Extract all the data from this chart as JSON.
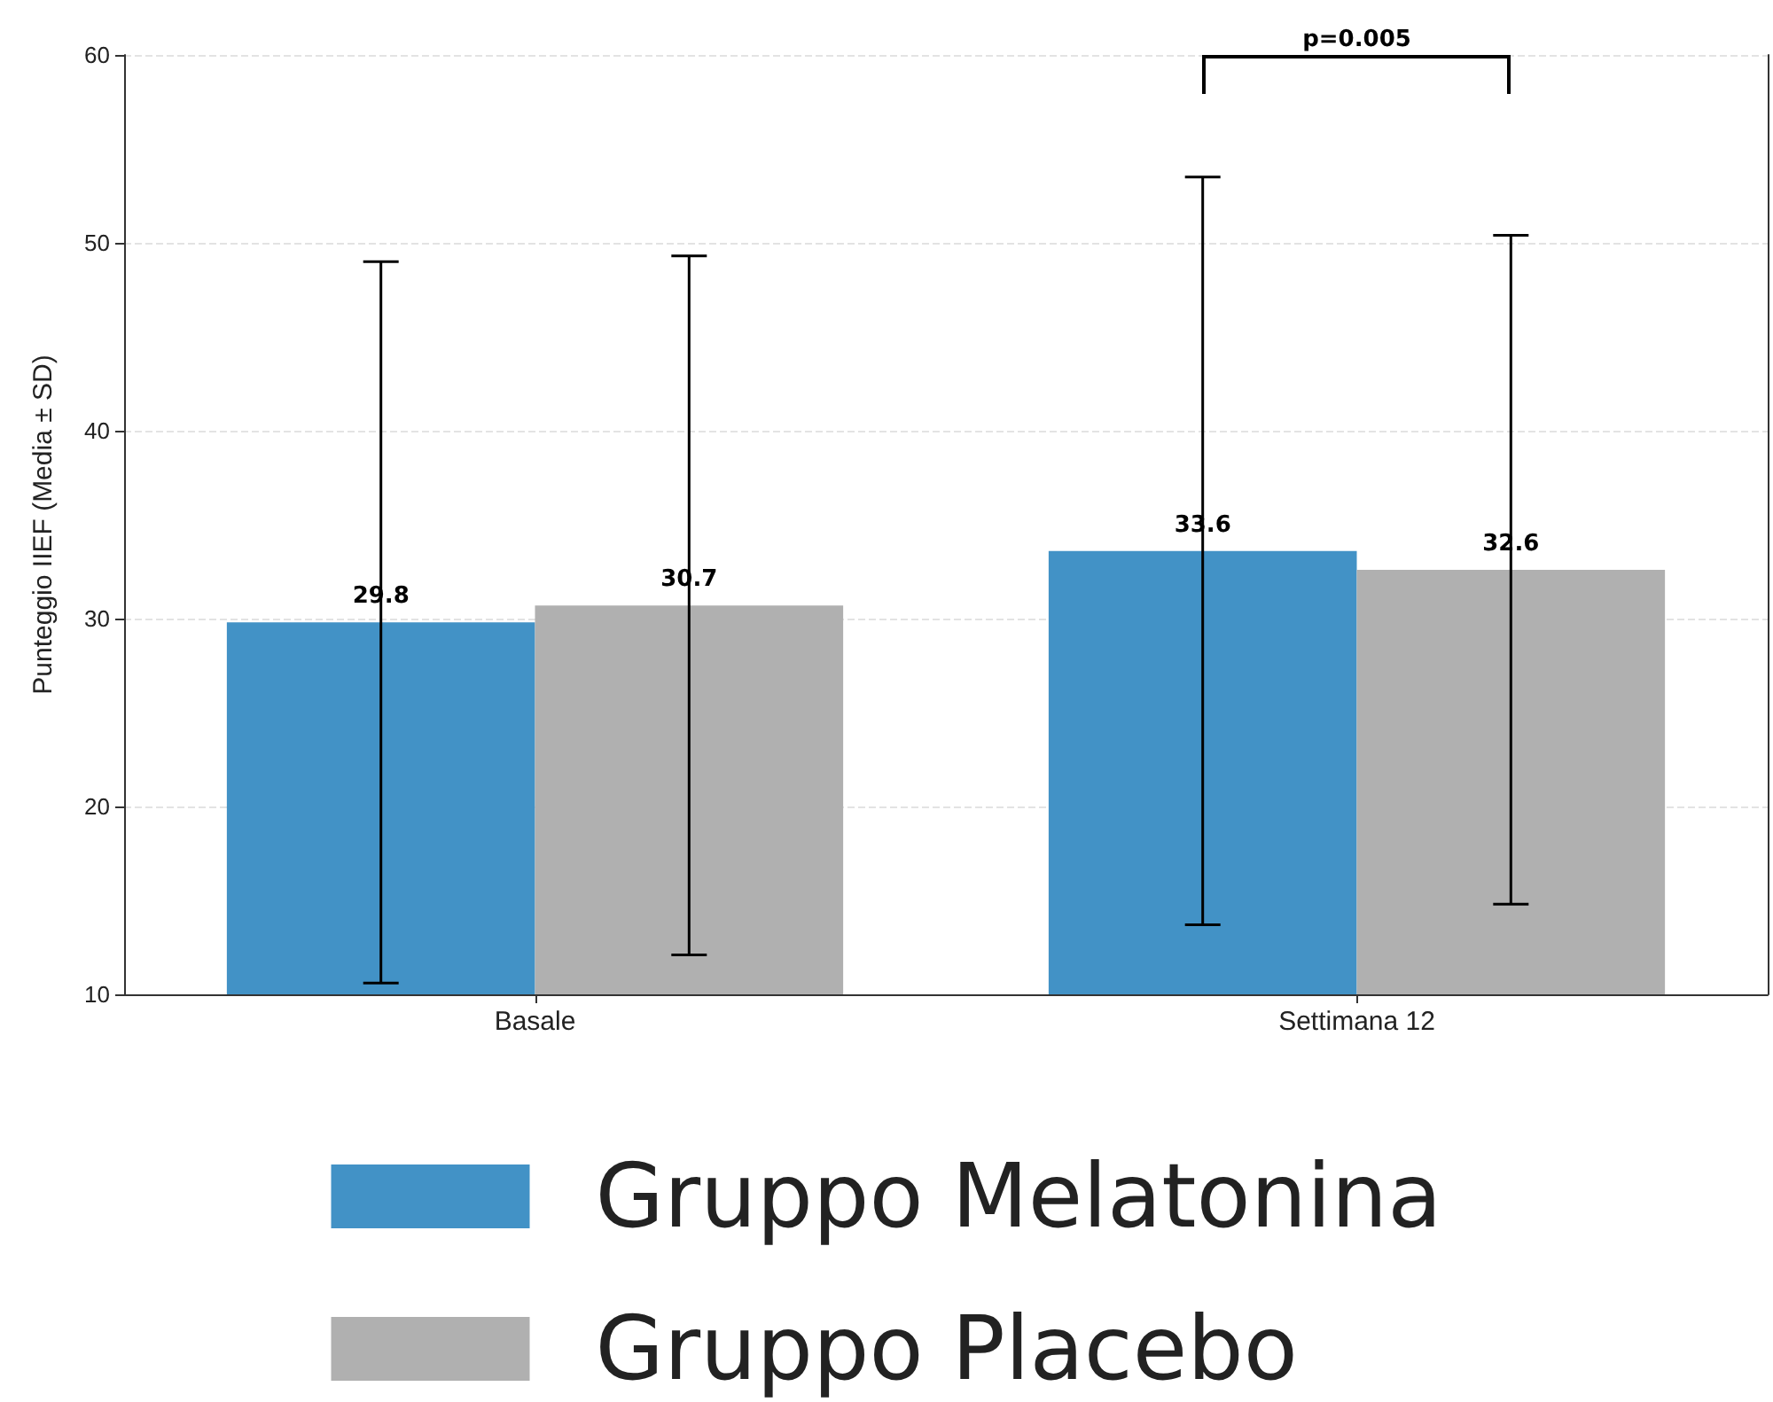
{
  "chart_data": {
    "type": "bar",
    "ylabel": "Punteggio IIEF (Media ± SD)",
    "categories": [
      "Basale",
      "Settimana 12"
    ],
    "series": [
      {
        "name": "Gruppo Melatonina",
        "color": "#4292c6",
        "values": [
          29.8,
          33.6
        ],
        "errors": [
          19.2,
          19.9
        ]
      },
      {
        "name": "Gruppo Placebo",
        "color": "#b0b0b0",
        "values": [
          30.7,
          32.6
        ],
        "errors": [
          18.6,
          17.8
        ]
      }
    ],
    "ylim": [
      10,
      60
    ],
    "yticks": [
      10,
      20,
      30,
      40,
      50,
      60
    ],
    "grid": "y",
    "legend": "bottom",
    "data_labels": true,
    "annotations": [
      "p=0.005"
    ]
  }
}
